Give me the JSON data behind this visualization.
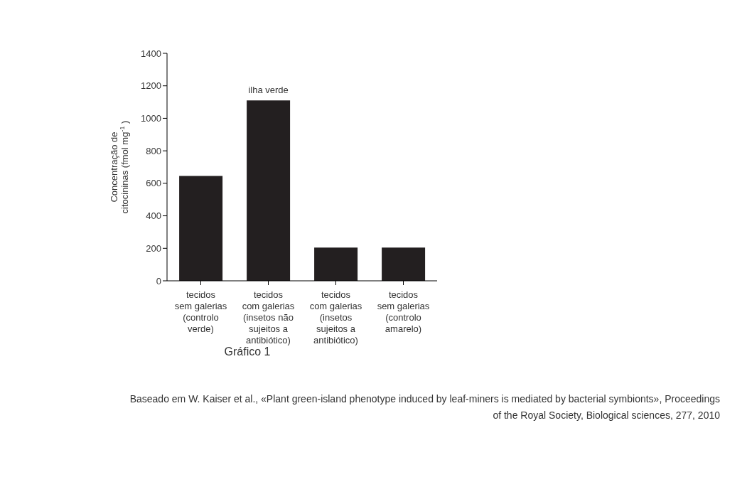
{
  "chart_data": {
    "type": "bar",
    "title": "Gráfico 1",
    "ylabel": "Concentração de\ncitocininas (fmol mg$^{-1}$)",
    "categories": [
      "tecidos\nsem galerias\n(controlo\nverde)",
      "tecidos\ncom galerias\n(insetos não\nsujeitos a\nantibiótico)",
      "tecidos\ncom galerias\n(insetos\nsujeitos a\nantibiótico)",
      "tecidos\nsem galerias\n(controlo\namarelo)"
    ],
    "values": [
      645,
      1110,
      205,
      205
    ],
    "color": "#231f20",
    "ylim": [
      0,
      1400
    ],
    "yticks": [
      0,
      200,
      400,
      600,
      800,
      1000,
      1200,
      1400
    ],
    "annotations": [
      {
        "text": "ilha verde",
        "x": "tecidos\ncom galerias\n(insetos não\nsujeitos a\nantibiótico)",
        "y": 1110
      },
      "Baseado em W. Kaiser et al., «Plant green-island phenotype induced by leaf-miners is mediated by bacterial symbionts», Proceedings of the Royal Society, Biological sciences, 277, 2010"
    ]
  }
}
